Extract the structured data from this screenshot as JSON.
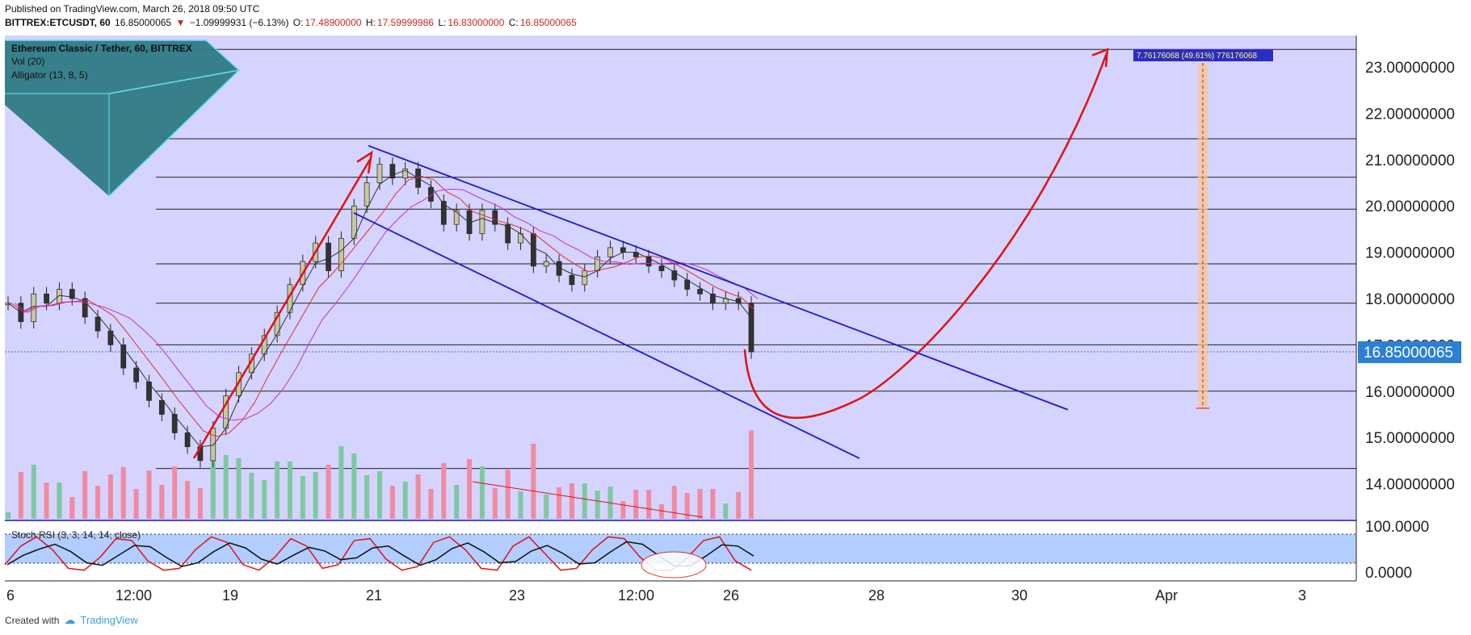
{
  "header": {
    "published": "Published on TradingView.com, March 26, 2018 09:50 UTC",
    "symbol": "BITTREX:ETCUSDT, 60",
    "last": "16.85000065",
    "down_arrow": "▼",
    "change": "−1.09999931 (−6.13%)",
    "o_label": "O:",
    "o_value": "17.48900000",
    "h_label": "H:",
    "h_value": "17.59999986",
    "l_label": "L:",
    "l_value": "16.83000000",
    "c_label": "C:",
    "c_value": "16.85000065"
  },
  "legend": {
    "title": "Ethereum Classic / Tether, 60, BITTREX",
    "vol": "Vol (20)",
    "alligator": "Alligator (13, 8, 5)"
  },
  "stoch_label": "Stoch RSI (3, 3, 14, 14, close)",
  "target_label": "7.76176068 (49.61%) 776176068",
  "footer": {
    "created_with": "Created with",
    "brand": "TradingView"
  },
  "colors": {
    "background": "#d5d3ff",
    "stoch_band": "#b2cdff",
    "channel": "#1a1ad4",
    "projection": "#e01212",
    "last_price_box": "#2b7fd6",
    "candle_up": "#c8c8a0",
    "candle_down": "#333333",
    "vol_up": "#7fc8a0",
    "vol_down": "#f08aa0"
  },
  "chart_data": {
    "type": "candlestick",
    "title": "Ethereum Classic / Tether, 60, BITTREX",
    "y_ticks": [
      "23.00000000",
      "22.00000000",
      "21.00000000",
      "20.00000000",
      "19.00000000",
      "18.00000000",
      "17.00000000",
      "16.00000000",
      "15.00000000",
      "14.00000000"
    ],
    "y_range": [
      13.3,
      23.5
    ],
    "last_price": "16.85000065",
    "x_ticks": [
      "6",
      "12:00",
      "19",
      "21",
      "23",
      "12:00",
      "26",
      "28",
      "30",
      "Apr",
      "3"
    ],
    "horizontal_levels": [
      23.38,
      21.45,
      20.62,
      19.93,
      18.75,
      17.9,
      17.0,
      16.0,
      14.33
    ],
    "channel_upper": [
      {
        "date": "21",
        "value": 21.3
      },
      {
        "date": "29.3",
        "value": 15.6
      }
    ],
    "channel_lower": [
      {
        "date": "20.9",
        "value": 19.85
      },
      {
        "date": "27",
        "value": 14.55
      }
    ],
    "price_path": [
      [
        17.9,
        17.5,
        18.1,
        17.9,
        18.2,
        18.0,
        17.6,
        17.3,
        17.0,
        16.5,
        16.2,
        15.8,
        15.5,
        15.1,
        14.8,
        14.5,
        15.2,
        15.9,
        16.4,
        16.8,
        17.2,
        17.7,
        18.3,
        18.8,
        19.2,
        18.6,
        19.3,
        20.0,
        20.5,
        20.9,
        20.6,
        20.8,
        20.4,
        20.1,
        19.6,
        19.9,
        19.4,
        19.9,
        19.6,
        19.2,
        19.4,
        18.7,
        18.8,
        18.5,
        18.3,
        18.6,
        18.9,
        19.1,
        19.0,
        18.9,
        18.7,
        18.6,
        18.4,
        18.2,
        18.1,
        17.9,
        18.0,
        17.9,
        16.85
      ]
    ],
    "projection_curve": {
      "start": 16.9,
      "bottom": 15.45,
      "target": 23.4
    },
    "target_measure": {
      "from": 15.6,
      "to": 23.38,
      "text": "7.76176068 (49.61%) 776176068"
    },
    "volume_panel": {
      "label": "Vol (20)",
      "max_visible": 14.0
    },
    "stoch_rsi": {
      "label": "Stoch RSI (3, 3, 14, 14, close)",
      "y_ticks": [
        "100.0000",
        "0.0000"
      ],
      "k": [
        20,
        70,
        95,
        60,
        10,
        5,
        40,
        90,
        85,
        30,
        5,
        10,
        60,
        95,
        80,
        20,
        5,
        40,
        90,
        70,
        10,
        20,
        85,
        90,
        35,
        5,
        15,
        80,
        95,
        60,
        10,
        5,
        70,
        95,
        50,
        5,
        10,
        60,
        95,
        90,
        40,
        5,
        5,
        40,
        85,
        95,
        30,
        5
      ]
    }
  }
}
